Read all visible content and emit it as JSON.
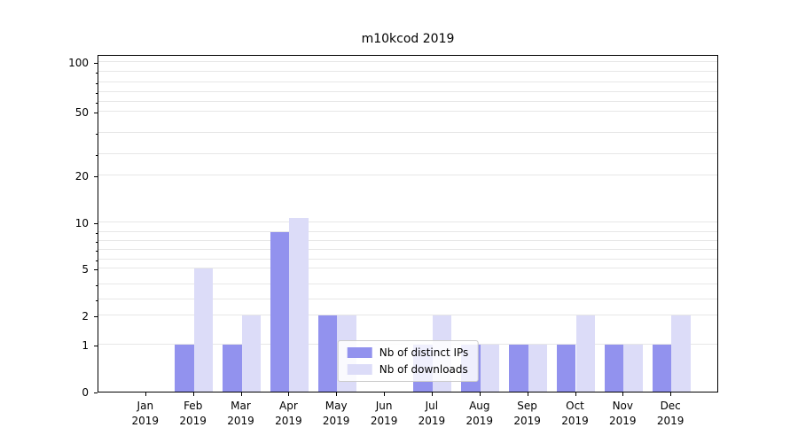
{
  "title": "m10kcod 2019",
  "colors": {
    "ips": "#9292ee",
    "downloads": "#dcdcf8",
    "grid": "#e7e7e7",
    "axis": "#000000"
  },
  "legend": {
    "items": [
      {
        "label": "Nb of distinct IPs",
        "series": "ips"
      },
      {
        "label": "Nb of downloads",
        "series": "downloads"
      }
    ]
  },
  "chart_data": {
    "type": "bar",
    "title": "m10kcod 2019",
    "xlabel": "",
    "ylabel": "",
    "categories": [
      "Jan 2019",
      "Feb 2019",
      "Mar 2019",
      "Apr 2019",
      "May 2019",
      "Jun 2019",
      "Jul 2019",
      "Aug 2019",
      "Sep 2019",
      "Oct 2019",
      "Nov 2019",
      "Dec 2019"
    ],
    "series": [
      {
        "name": "Nb of distinct IPs",
        "color_key": "ips",
        "values": [
          0,
          1,
          1,
          9,
          2,
          0,
          1,
          1,
          1,
          1,
          1,
          1
        ]
      },
      {
        "name": "Nb of downloads",
        "color_key": "downloads",
        "values": [
          0,
          5,
          2,
          11,
          2,
          0,
          2,
          1,
          1,
          2,
          1,
          2
        ]
      }
    ],
    "yticks": [
      0,
      1,
      2,
      5,
      10,
      20,
      50,
      100
    ],
    "ylim": [
      0,
      110
    ],
    "yscale": "symlog",
    "grid": true,
    "legend_position": "lower center"
  }
}
